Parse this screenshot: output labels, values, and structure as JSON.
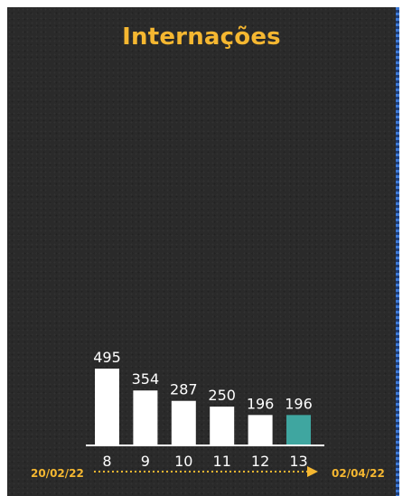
{
  "colors": {
    "panel_bg": "#2a2a2a",
    "accent": "#f5b731",
    "bar": "#ffffff",
    "bar_highlight": "#3fa6a0",
    "text": "#ffffff"
  },
  "chart_data": {
    "type": "bar",
    "title": "Internações",
    "categories": [
      "8",
      "9",
      "10",
      "11",
      "12",
      "13"
    ],
    "values": [
      495,
      354,
      287,
      250,
      196,
      196
    ],
    "highlight_index": 5,
    "ylim": [
      0,
      495
    ],
    "grid": false,
    "data_labels": true,
    "timeline": {
      "start": "20/02/22",
      "end": "02/04/22"
    }
  }
}
